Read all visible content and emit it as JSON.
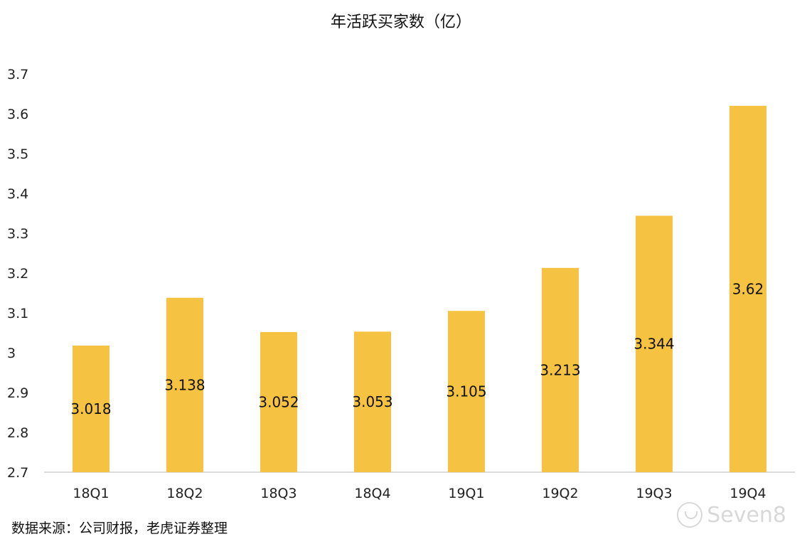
{
  "chart_data": {
    "type": "bar",
    "title": "年活跃买家数（亿）",
    "categories": [
      "18Q1",
      "18Q2",
      "18Q3",
      "18Q4",
      "19Q1",
      "19Q2",
      "19Q3",
      "19Q4"
    ],
    "values": [
      3.018,
      3.138,
      3.052,
      3.053,
      3.105,
      3.213,
      3.344,
      3.62
    ],
    "data_labels": [
      "3.018",
      "3.138",
      "3.052",
      "3.053",
      "3.105",
      "3.213",
      "3.344",
      "3.62"
    ],
    "yticks": [
      2.7,
      2.8,
      2.9,
      3,
      3.1,
      3.2,
      3.3,
      3.4,
      3.5,
      3.6,
      3.7
    ],
    "ytick_labels": [
      "2.7",
      "2.8",
      "2.9",
      "3",
      "3.1",
      "3.2",
      "3.3",
      "3.4",
      "3.5",
      "3.6",
      "3.7"
    ],
    "ylim": [
      2.7,
      3.7
    ],
    "grid": false,
    "bar_color": "#F5C242",
    "xlabel": "",
    "ylabel": ""
  },
  "footer": {
    "source": "数据来源：公司财报，老虎证券整理",
    "watermark": "Seven8"
  }
}
